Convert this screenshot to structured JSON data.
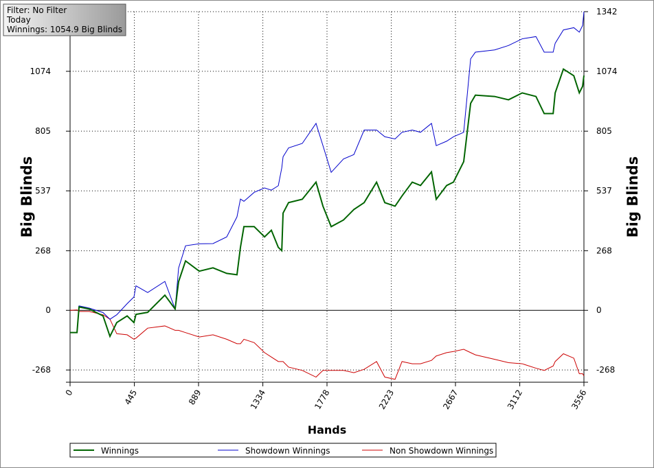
{
  "chart_data": {
    "type": "line",
    "info_box": [
      "Filter: No Filter",
      "Today",
      "Winnings: 1054.9 Big Blinds"
    ],
    "xlabel": "Hands",
    "ylabel": "Big Blinds",
    "xlim": [
      0,
      3556
    ],
    "ylim": [
      -323,
      1342
    ],
    "xticks": [
      0,
      445,
      889,
      1334,
      1778,
      2223,
      2667,
      3112,
      3556
    ],
    "yticks": [
      -268,
      0,
      268,
      537,
      805,
      1074,
      1342
    ],
    "grid": true,
    "x": [
      0,
      48,
      62,
      133,
      228,
      276,
      323,
      395,
      442,
      456,
      537,
      656,
      727,
      751,
      799,
      894,
      989,
      1084,
      1155,
      1179,
      1203,
      1274,
      1346,
      1393,
      1441,
      1465,
      1474,
      1512,
      1607,
      1702,
      1750,
      1807,
      1892,
      1964,
      2035,
      2121,
      2178,
      2249,
      2297,
      2368,
      2425,
      2501,
      2534,
      2606,
      2653,
      2724,
      2772,
      2805,
      2938,
      3034,
      3129,
      3224,
      3281,
      3343,
      3357,
      3414,
      3486,
      3524,
      3547,
      3556
    ],
    "series": [
      {
        "name": "Winnings",
        "color": "#006400",
        "values": [
          -100,
          -100,
          15,
          6,
          -25,
          -117,
          -55,
          -25,
          -55,
          -18,
          -9,
          68,
          6,
          129,
          222,
          176,
          191,
          166,
          160,
          283,
          376,
          376,
          330,
          360,
          283,
          268,
          437,
          484,
          499,
          576,
          468,
          376,
          406,
          453,
          484,
          576,
          484,
          468,
          514,
          576,
          561,
          622,
          499,
          561,
          576,
          668,
          930,
          967,
          961,
          946,
          977,
          961,
          884,
          884,
          977,
          1084,
          1054,
          977,
          1007,
          1055
        ]
      },
      {
        "name": "Showdown Winnings",
        "color": "#0000cc",
        "values": [
          -100,
          -100,
          20,
          10,
          -10,
          -40,
          -20,
          30,
          60,
          110,
          80,
          130,
          6,
          190,
          290,
          299,
          300,
          330,
          420,
          500,
          490,
          530,
          550,
          540,
          560,
          640,
          690,
          730,
          750,
          840,
          740,
          620,
          680,
          700,
          810,
          810,
          780,
          770,
          800,
          810,
          800,
          840,
          740,
          760,
          780,
          800,
          1130,
          1160,
          1170,
          1190,
          1220,
          1230,
          1160,
          1160,
          1200,
          1260,
          1270,
          1250,
          1280,
          1342
        ]
      },
      {
        "name": "Non Showdown Winnings",
        "color": "#cc0000",
        "values": [
          0,
          2,
          -5,
          -5,
          -20,
          -40,
          -105,
          -110,
          -130,
          -125,
          -80,
          -70,
          -90,
          -90,
          -100,
          -120,
          -110,
          -130,
          -150,
          -150,
          -130,
          -145,
          -190,
          -210,
          -230,
          -230,
          -230,
          -255,
          -270,
          -300,
          -270,
          -270,
          -270,
          -280,
          -265,
          -230,
          -300,
          -310,
          -230,
          -240,
          -240,
          -225,
          -205,
          -190,
          -185,
          -175,
          -190,
          -200,
          -220,
          -235,
          -240,
          -260,
          -270,
          -250,
          -230,
          -195,
          -215,
          -285,
          -285,
          -295
        ]
      }
    ]
  }
}
